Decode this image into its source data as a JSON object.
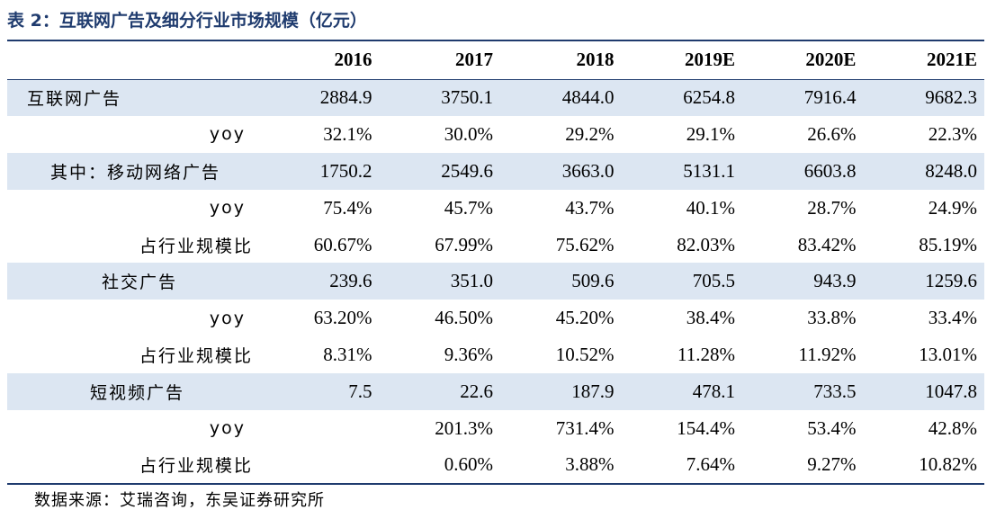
{
  "title": "表 2：互联网广告及细分行业市场规模（亿元）",
  "header": {
    "label": "",
    "years": [
      "2016",
      "2017",
      "2018",
      "2019E",
      "2020E",
      "2021E"
    ]
  },
  "rows": [
    {
      "label": "互联网广告",
      "values": [
        "2884.9",
        "3750.1",
        "4844.0",
        "6254.8",
        "7916.4",
        "9682.3"
      ]
    },
    {
      "label": "yoy",
      "values": [
        "32.1%",
        "30.0%",
        "29.2%",
        "29.1%",
        "26.6%",
        "22.3%"
      ]
    },
    {
      "label": "其中：移动网络广告",
      "values": [
        "1750.2",
        "2549.6",
        "3663.0",
        "5131.1",
        "6603.8",
        "8248.0"
      ]
    },
    {
      "label": "yoy",
      "values": [
        "75.4%",
        "45.7%",
        "43.7%",
        "40.1%",
        "28.7%",
        "24.9%"
      ]
    },
    {
      "label": "占行业规模比",
      "values": [
        "60.67%",
        "67.99%",
        "75.62%",
        "82.03%",
        "83.42%",
        "85.19%"
      ]
    },
    {
      "label": "社交广告",
      "values": [
        "239.6",
        "351.0",
        "509.6",
        "705.5",
        "943.9",
        "1259.6"
      ]
    },
    {
      "label": "yoy",
      "values": [
        "63.20%",
        "46.50%",
        "45.20%",
        "38.4%",
        "33.8%",
        "33.4%"
      ]
    },
    {
      "label": "占行业规模比",
      "values": [
        "8.31%",
        "9.36%",
        "10.52%",
        "11.28%",
        "11.92%",
        "13.01%"
      ]
    },
    {
      "label": "短视频广告",
      "values": [
        "7.5",
        "22.6",
        "187.9",
        "478.1",
        "733.5",
        "1047.8"
      ]
    },
    {
      "label": "yoy",
      "values": [
        "",
        "201.3%",
        "731.4%",
        "154.4%",
        "53.4%",
        "42.8%"
      ]
    },
    {
      "label": "占行业规模比",
      "values": [
        "",
        "0.60%",
        "3.88%",
        "7.64%",
        "9.27%",
        "10.82%"
      ]
    }
  ],
  "source": "数据来源：艾瑞咨询，东吴证券研究所",
  "colors": {
    "title": "#1f3b6e",
    "rule": "#1f3b6e",
    "shaded_row": "#dce6f2"
  }
}
